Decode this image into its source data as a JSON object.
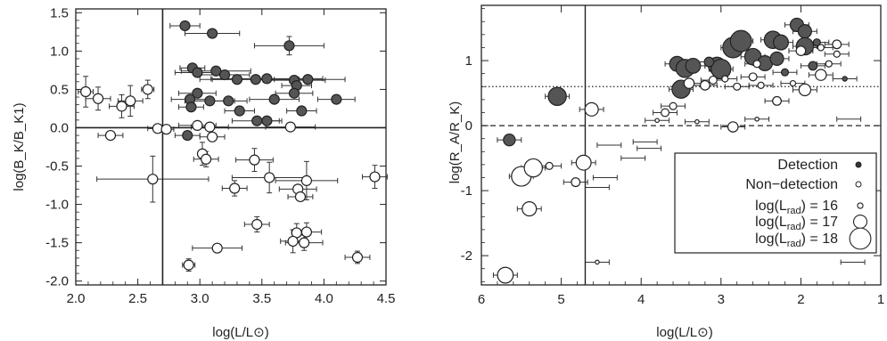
{
  "chart_data": [
    {
      "type": "scatter",
      "xlabel": "log(L/L⊙)",
      "ylabel": "log(B_K/B_K1)",
      "xlim": [
        2.0,
        4.5
      ],
      "ylim": [
        -2.05,
        1.55
      ],
      "xticks": [
        "2.0",
        "2.5",
        "3.0",
        "3.5",
        "4.0",
        "4.5"
      ],
      "yticks": [
        "-2.0",
        "-1.5",
        "-1.0",
        "-0.5",
        "0.0",
        "0.5",
        "1.0",
        "1.5"
      ],
      "reference_lines": {
        "vertical_x": 2.7,
        "horizontal_y": 0.0
      },
      "series": [
        {
          "marker": "filled-circle",
          "points": [
            {
              "x": 2.88,
              "y": 1.33,
              "xerr": 0.12
            },
            {
              "x": 3.1,
              "y": 1.23,
              "xerr": 0.22
            },
            {
              "x": 3.72,
              "y": 1.07,
              "xerr": 0.28,
              "yerr": 0.12
            },
            {
              "x": 2.94,
              "y": 0.78,
              "xerr": 0.1
            },
            {
              "x": 3.13,
              "y": 0.74,
              "xerr": 0.28
            },
            {
              "x": 2.98,
              "y": 0.72,
              "xerr": 0.18
            },
            {
              "x": 3.2,
              "y": 0.69,
              "xerr": 0.2
            },
            {
              "x": 3.3,
              "y": 0.63,
              "xerr": 0.3
            },
            {
              "x": 3.45,
              "y": 0.63,
              "xerr": 0.35
            },
            {
              "x": 3.54,
              "y": 0.64,
              "xerr": 0.45
            },
            {
              "x": 3.76,
              "y": 0.62,
              "xerr": 0.25
            },
            {
              "x": 3.87,
              "y": 0.63,
              "xerr": 0.3
            },
            {
              "x": 3.78,
              "y": 0.55,
              "xerr": 0.12
            },
            {
              "x": 2.98,
              "y": 0.45,
              "xerr": 0.15
            },
            {
              "x": 3.76,
              "y": 0.45,
              "xerr": 0.15
            },
            {
              "x": 2.92,
              "y": 0.37,
              "xerr": 0.15
            },
            {
              "x": 3.08,
              "y": 0.35,
              "xerr": 0.2
            },
            {
              "x": 3.23,
              "y": 0.35,
              "xerr": 0.15
            },
            {
              "x": 3.6,
              "y": 0.37,
              "xerr": 0.2
            },
            {
              "x": 4.1,
              "y": 0.37,
              "xerr": 0.15
            },
            {
              "x": 2.93,
              "y": 0.27,
              "xerr": 0.1
            },
            {
              "x": 3.32,
              "y": 0.22,
              "xerr": 0.12
            },
            {
              "x": 3.82,
              "y": 0.22,
              "xerr": 0.12
            },
            {
              "x": 3.46,
              "y": 0.09,
              "xerr": 0.2
            },
            {
              "x": 3.54,
              "y": 0.09,
              "xerr": 0.1
            },
            {
              "x": 2.9,
              "y": -0.1,
              "xerr": 0.1
            }
          ]
        },
        {
          "marker": "open-circle",
          "points": [
            {
              "x": 2.08,
              "y": 0.47,
              "xerr": 0.06,
              "yerr": 0.2
            },
            {
              "x": 2.18,
              "y": 0.38,
              "xerr": 0.1,
              "yerr": 0.15
            },
            {
              "x": 2.58,
              "y": 0.5,
              "xerr": 0.05,
              "yerr": 0.12
            },
            {
              "x": 2.44,
              "y": 0.35,
              "xerr": 0.1,
              "yerr": 0.2
            },
            {
              "x": 2.37,
              "y": 0.28,
              "xerr": 0.1,
              "yerr": 0.15
            },
            {
              "x": 2.28,
              "y": -0.1,
              "xerr": 0.1
            },
            {
              "x": 2.66,
              "y": -0.01,
              "xerr": 0.08
            },
            {
              "x": 2.73,
              "y": -0.02,
              "xerr": 0.06
            },
            {
              "x": 2.98,
              "y": 0.03,
              "xerr": 0.15
            },
            {
              "x": 3.08,
              "y": 0.01,
              "xerr": 0.15
            },
            {
              "x": 3.1,
              "y": -0.12,
              "xerr": 0.1
            },
            {
              "x": 3.73,
              "y": 0.01,
              "xerr": 0.2
            },
            {
              "x": 3.02,
              "y": -0.34,
              "yerr": 0.15
            },
            {
              "x": 3.05,
              "y": -0.41,
              "xerr": 0.1,
              "yerr": 0.1
            },
            {
              "x": 3.44,
              "y": -0.42,
              "xerr": 0.15,
              "yerr": 0.15
            },
            {
              "x": 2.62,
              "y": -0.67,
              "xerr": 0.45,
              "yerr": 0.3
            },
            {
              "x": 3.56,
              "y": -0.65,
              "xerr": 0.3,
              "yerr": 0.2
            },
            {
              "x": 3.86,
              "y": -0.69,
              "xerr": 0.25,
              "yerr": 0.25
            },
            {
              "x": 4.41,
              "y": -0.64,
              "xerr": 0.1,
              "yerr": 0.15
            },
            {
              "x": 3.28,
              "y": -0.79,
              "xerr": 0.1,
              "yerr": 0.1
            },
            {
              "x": 3.79,
              "y": -0.8,
              "xerr": 0.15
            },
            {
              "x": 3.81,
              "y": -0.9,
              "xerr": 0.1
            },
            {
              "x": 3.46,
              "y": -1.26,
              "xerr": 0.1,
              "yerr": 0.1
            },
            {
              "x": 3.78,
              "y": -1.37,
              "yerr": 0.12
            },
            {
              "x": 3.86,
              "y": -1.36,
              "xerr": 0.12,
              "yerr": 0.12
            },
            {
              "x": 3.84,
              "y": -1.5,
              "xerr": 0.15,
              "yerr": 0.1
            },
            {
              "x": 3.75,
              "y": -1.48,
              "xerr": 0.1,
              "yerr": 0.15
            },
            {
              "x": 3.14,
              "y": -1.57,
              "xerr": 0.2
            },
            {
              "x": 4.27,
              "y": -1.69,
              "xerr": 0.1,
              "yerr": 0.08
            },
            {
              "x": 2.91,
              "y": -1.79,
              "xerr": 0.05,
              "yerr": 0.08
            }
          ]
        }
      ]
    },
    {
      "type": "scatter",
      "xlabel": "log(L/L⊙)",
      "ylabel": "log(R_A/R_K)",
      "xlim": [
        6,
        1
      ],
      "x_reversed": true,
      "ylim": [
        -2.45,
        1.85
      ],
      "xticks": [
        "6",
        "5",
        "4",
        "3",
        "2",
        "1"
      ],
      "yticks": [
        "-2",
        "-1",
        "0",
        "1"
      ],
      "reference_lines": {
        "vertical_x": 4.7,
        "horizontal_dashed_y": 0.0,
        "horizontal_dotted_y": 0.6
      },
      "legend": {
        "position": "bottom-right",
        "entries": [
          {
            "label": "Detection",
            "marker": "filled-circle"
          },
          {
            "label": "Non−detection",
            "marker": "open-circle"
          },
          {
            "label_prefix": "log(L",
            "label_sub": "rad",
            "label_suffix": ") = 16",
            "log_lrad": 16
          },
          {
            "label_prefix": "log(L",
            "label_sub": "rad",
            "label_suffix": ") = 17",
            "log_lrad": 17
          },
          {
            "label_prefix": "log(L",
            "label_sub": "rad",
            "label_suffix": ") = 18",
            "log_lrad": 18
          }
        ]
      },
      "series": [
        {
          "marker": "filled-circle",
          "points": [
            {
              "x": 5.65,
              "y": -0.22,
              "lrad": 16.8
            },
            {
              "x": 5.05,
              "y": 0.45,
              "lrad": 17.6
            },
            {
              "x": 3.55,
              "y": 0.95,
              "lrad": 17.2
            },
            {
              "x": 3.45,
              "y": 0.88,
              "lrad": 17.6
            },
            {
              "x": 3.35,
              "y": 0.92,
              "lrad": 17.2
            },
            {
              "x": 3.5,
              "y": 0.56,
              "lrad": 17.6
            },
            {
              "x": 3.05,
              "y": 0.92,
              "lrad": 17.5
            },
            {
              "x": 3.0,
              "y": 0.87,
              "lrad": 17.8
            },
            {
              "x": 2.85,
              "y": 1.2,
              "lrad": 17.9
            },
            {
              "x": 2.75,
              "y": 1.3,
              "lrad": 18.0
            },
            {
              "x": 2.6,
              "y": 1.06,
              "lrad": 17.4
            },
            {
              "x": 2.45,
              "y": 0.96,
              "lrad": 17.2
            },
            {
              "x": 2.35,
              "y": 1.32,
              "lrad": 17.5
            },
            {
              "x": 2.25,
              "y": 1.28,
              "lrad": 17.2
            },
            {
              "x": 2.3,
              "y": 1.03,
              "lrad": 17.0
            },
            {
              "x": 2.05,
              "y": 1.55,
              "lrad": 17.0
            },
            {
              "x": 1.95,
              "y": 1.45,
              "lrad": 17.0
            },
            {
              "x": 1.95,
              "y": 1.22,
              "lrad": 17.5
            },
            {
              "x": 2.2,
              "y": 0.82,
              "lrad": 16.2
            },
            {
              "x": 1.85,
              "y": 0.92,
              "lrad": 16.4
            },
            {
              "x": 1.45,
              "y": 0.72,
              "lrad": 15.9
            },
            {
              "x": 1.8,
              "y": 1.28,
              "lrad": 16.2
            },
            {
              "x": 3.15,
              "y": 0.98,
              "lrad": 16.5
            }
          ]
        },
        {
          "marker": "open-circle",
          "points": [
            {
              "x": 5.7,
              "y": -2.3,
              "lrad": 17.3
            },
            {
              "x": 5.4,
              "y": -1.28,
              "lrad": 17.1
            },
            {
              "x": 5.5,
              "y": -0.78,
              "lrad": 17.8
            },
            {
              "x": 5.35,
              "y": -0.65,
              "lrad": 17.6
            },
            {
              "x": 5.15,
              "y": -0.62,
              "lrad": 16.2
            },
            {
              "x": 4.72,
              "y": -0.57,
              "lrad": 17.2
            },
            {
              "x": 4.82,
              "y": -0.87,
              "lrad": 16.4
            },
            {
              "x": 4.62,
              "y": 0.25,
              "lrad": 17.0
            },
            {
              "x": 4.55,
              "y": -2.1,
              "lrad": 15.8
            },
            {
              "x": 3.7,
              "y": 0.2,
              "lrad": 16.3
            },
            {
              "x": 3.6,
              "y": 0.3,
              "lrad": 16.2
            },
            {
              "x": 3.4,
              "y": 0.65,
              "lrad": 16.6
            },
            {
              "x": 3.2,
              "y": 0.62,
              "lrad": 16.5
            },
            {
              "x": 3.1,
              "y": 0.7,
              "lrad": 16.3
            },
            {
              "x": 2.95,
              "y": 0.72,
              "lrad": 16.1
            },
            {
              "x": 2.8,
              "y": 0.6,
              "lrad": 16.2
            },
            {
              "x": 2.6,
              "y": 0.75,
              "lrad": 16.3
            },
            {
              "x": 2.5,
              "y": 0.62,
              "lrad": 16.1
            },
            {
              "x": 3.3,
              "y": 0.06,
              "lrad": 15.8
            },
            {
              "x": 2.85,
              "y": -0.02,
              "lrad": 16.6
            },
            {
              "x": 2.3,
              "y": 0.38,
              "lrad": 16.4
            },
            {
              "x": 2.1,
              "y": 0.65,
              "lrad": 16.0
            },
            {
              "x": 1.95,
              "y": 0.55,
              "lrad": 16.8
            },
            {
              "x": 1.75,
              "y": 0.78,
              "lrad": 16.7
            },
            {
              "x": 1.55,
              "y": 1.1,
              "lrad": 16.1
            },
            {
              "x": 1.55,
              "y": 1.25,
              "lrad": 16.4
            },
            {
              "x": 1.65,
              "y": 0.95,
              "lrad": 16.1
            },
            {
              "x": 2.55,
              "y": 0.95,
              "lrad": 16.2
            },
            {
              "x": 2.0,
              "y": 1.15,
              "lrad": 16.5
            },
            {
              "x": 1.75,
              "y": 1.2,
              "lrad": 16.1
            },
            {
              "x": 3.8,
              "y": 0.08,
              "lrad": 15.8
            },
            {
              "x": 2.55,
              "y": 0.1,
              "lrad": 15.8
            }
          ]
        },
        {
          "marker": "none",
          "points": [
            {
              "x": 4.4,
              "y": -0.3
            },
            {
              "x": 3.95,
              "y": -0.25
            },
            {
              "x": 4.1,
              "y": -0.5
            },
            {
              "x": 4.55,
              "y": -0.95
            },
            {
              "x": 4.45,
              "y": -0.8
            },
            {
              "x": 3.9,
              "y": -0.35
            },
            {
              "x": 1.4,
              "y": 0.1
            },
            {
              "x": 1.35,
              "y": -0.7
            },
            {
              "x": 1.35,
              "y": -2.1
            },
            {
              "x": 1.35,
              "y": -0.85
            }
          ]
        }
      ]
    }
  ]
}
